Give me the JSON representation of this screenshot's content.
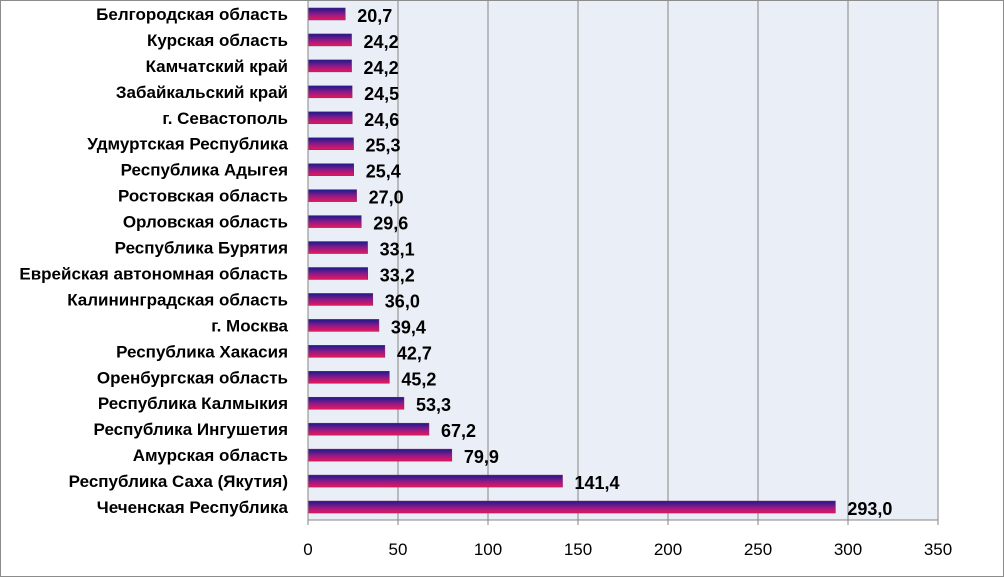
{
  "chart_data": {
    "type": "bar",
    "orientation": "horizontal",
    "categories": [
      "Белгородская область",
      "Курская область",
      "Камчатский край",
      "Забайкальский край",
      "г. Севастополь",
      "Удмуртская Республика",
      "Республика Адыгея",
      "Ростовская область",
      "Орловская область",
      "Республика Бурятия",
      "Еврейская автономная область",
      "Калининградская область",
      "г. Москва",
      "Республика Хакасия",
      "Оренбургская область",
      "Республика Калмыкия",
      "Республика Ингушетия",
      "Амурская область",
      "Республика Саха (Якутия)",
      "Чеченская Республика"
    ],
    "values": [
      20.7,
      24.2,
      24.2,
      24.5,
      24.6,
      25.3,
      25.4,
      27.0,
      29.6,
      33.1,
      33.2,
      36.0,
      39.4,
      42.7,
      45.2,
      53.3,
      67.2,
      79.9,
      141.4,
      293.0
    ],
    "value_labels": [
      "20,7",
      "24,2",
      "24,2",
      "24,5",
      "24,6",
      "25,3",
      "25,4",
      "27,0",
      "29,6",
      "33,1",
      "33,2",
      "36,0",
      "39,4",
      "42,7",
      "45,2",
      "53,3",
      "67,2",
      "79,9",
      "141,4",
      "293,0"
    ],
    "xlim": [
      0,
      350
    ],
    "x_ticks": [
      "0",
      "50",
      "100",
      "150",
      "200",
      "250",
      "300",
      "350"
    ],
    "grid": "vertical",
    "legend": "none",
    "plot_background": "#eaeef7",
    "bar_colors": {
      "top": "#1a1a8a",
      "bottom": "#e8195a"
    },
    "title": "",
    "xlabel": "",
    "ylabel": ""
  }
}
